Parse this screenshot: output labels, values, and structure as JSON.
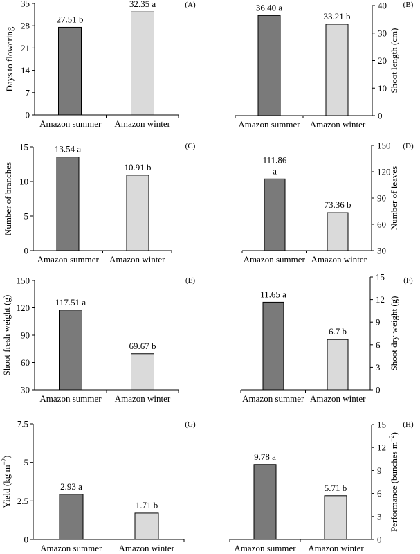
{
  "colors": {
    "summer": "#7a7a7a",
    "winter": "#dadada",
    "stroke": "#000000"
  },
  "chart_data": [
    {
      "id": "A",
      "panel_label": "(A)",
      "type": "bar",
      "categories": [
        "Amazon summer",
        "Amazon winter"
      ],
      "values": [
        27.51,
        32.35
      ],
      "data_labels": [
        "27.51 b",
        "32.35 a"
      ],
      "ylabel": "Days to flowering",
      "ylim": [
        0,
        35
      ],
      "yticks": [
        0,
        7,
        14,
        21,
        28,
        35
      ],
      "axis_side": "left",
      "grid": false
    },
    {
      "id": "B",
      "panel_label": "(B)",
      "type": "bar",
      "categories": [
        "Amazon summer",
        "Amazon winter"
      ],
      "values": [
        36.4,
        33.21
      ],
      "data_labels": [
        "36.40 a",
        "33.21 b"
      ],
      "ylabel": "Shoot length (cm)",
      "ylim": [
        0,
        40
      ],
      "yticks": [
        0,
        10,
        20,
        30,
        40
      ],
      "axis_side": "right",
      "grid": false
    },
    {
      "id": "C",
      "panel_label": "(C)",
      "type": "bar",
      "categories": [
        "Amazon summer",
        "Amazon winter"
      ],
      "values": [
        13.54,
        10.91
      ],
      "data_labels": [
        "13.54 a",
        "10.91 b"
      ],
      "ylabel": "Number of branches",
      "ylim": [
        0,
        15
      ],
      "yticks": [
        0,
        5,
        10,
        15
      ],
      "axis_side": "left",
      "grid": false
    },
    {
      "id": "D",
      "panel_label": "(D)",
      "type": "bar",
      "categories": [
        "Amazon summer",
        "Amazon winter"
      ],
      "values": [
        111.86,
        73.36
      ],
      "data_labels": [
        "111.86\na",
        "73.36 b"
      ],
      "ylabel": "Number of leaves",
      "ylim": [
        30,
        150
      ],
      "yticks": [
        30,
        60,
        90,
        120,
        150
      ],
      "axis_side": "right",
      "grid": false
    },
    {
      "id": "E",
      "panel_label": "(E)",
      "type": "bar",
      "categories": [
        "Amazon summer",
        "Amazon winter"
      ],
      "values": [
        117.51,
        69.67
      ],
      "data_labels": [
        "117.51 a",
        "69.67 b"
      ],
      "ylabel": "Shoot fresh weight (g)",
      "ylim": [
        30,
        150
      ],
      "yticks": [
        30,
        60,
        90,
        120,
        150
      ],
      "axis_side": "left",
      "grid": false
    },
    {
      "id": "F",
      "panel_label": "(F)",
      "type": "bar",
      "categories": [
        "Amazon summer",
        "Amazon winter"
      ],
      "values": [
        11.65,
        6.7
      ],
      "data_labels": [
        "11.65 a",
        "6.7 b"
      ],
      "ylabel": "Shoot dry weight (g)",
      "ylim": [
        0,
        15
      ],
      "yticks": [
        0,
        3,
        6,
        9,
        12,
        15
      ],
      "axis_side": "right",
      "grid": false
    },
    {
      "id": "G",
      "panel_label": "(G)",
      "type": "bar",
      "categories": [
        "Amazon summer",
        "Amazon winter"
      ],
      "values": [
        2.93,
        1.71
      ],
      "data_labels": [
        "2.93 a",
        "1.71 b"
      ],
      "ylabel": "Yield (kg m",
      "ylabel_sup": "−2",
      "ylabel_end": ")",
      "ylim": [
        0,
        7.5
      ],
      "yticks": [
        0,
        2.5,
        5,
        7.5
      ],
      "axis_side": "left",
      "grid": false
    },
    {
      "id": "H",
      "panel_label": "(H)",
      "type": "bar",
      "categories": [
        "Amazon summer",
        "Amazon winter"
      ],
      "values": [
        9.78,
        5.71
      ],
      "data_labels": [
        "9.78 a",
        "5.71 b"
      ],
      "ylabel": "Performance (bunches m",
      "ylabel_sup": "−2",
      "ylabel_end": ")",
      "ylim": [
        0,
        15
      ],
      "yticks": [
        0,
        3,
        6,
        9,
        12,
        15
      ],
      "axis_side": "right",
      "grid": false
    }
  ]
}
